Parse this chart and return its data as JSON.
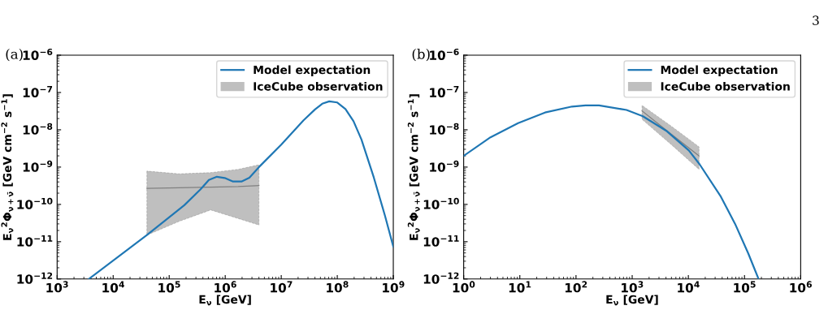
{
  "chart_data": [
    {
      "type": "line",
      "title": "(a)",
      "xlabel": "E$_{ν}$ [GeV]",
      "ylabel": "E$_{ν}$$^{2}$Φ$_{ν+ν̄}$ [GeV cm$^{−2}$ s$^{−1}$]",
      "log": "xy",
      "legend": "top right",
      "grid": false,
      "xlim": [
        1000,
        1000000000
      ],
      "ylim": [
        1e-12,
        1e-06
      ],
      "xticks": [
        {
          "value": 1000,
          "label": "10$^{3}$"
        },
        {
          "value": 10000,
          "label": "10$^{4}$"
        },
        {
          "value": 100000,
          "label": "10$^{5}$"
        },
        {
          "value": 1000000,
          "label": "10$^{6}$"
        },
        {
          "value": 10000000,
          "label": "10$^{7}$"
        },
        {
          "value": 100000000,
          "label": "10$^{8}$"
        },
        {
          "value": 1000000000,
          "label": "10$^{9}$"
        }
      ],
      "yticks": [
        {
          "value": 1e-12,
          "label": "10$^{−12}$"
        },
        {
          "value": 1e-11,
          "label": "10$^{−11}$"
        },
        {
          "value": 1e-10,
          "label": "10$^{−10}$"
        },
        {
          "value": 1e-09,
          "label": "10$^{−9}$"
        },
        {
          "value": 1e-08,
          "label": "10$^{−8}$"
        },
        {
          "value": 1e-07,
          "label": "10$^{−7}$"
        },
        {
          "value": 1e-06,
          "label": "10$^{−6}$"
        }
      ],
      "series": [
        {
          "name": "Model expectation",
          "color": "#1f77b4",
          "x": [
            3670,
            40000,
            186000,
            360000,
            510000,
            710000,
            980000,
            1380000,
            1950000,
            2700000,
            4000000,
            10000000,
            25000000,
            40000000,
            54000000,
            72000000,
            100000000,
            140000000,
            195000000,
            270000000,
            450000000,
            710000000,
            1000000000
          ],
          "values": [
            1e-12,
            1.5e-11,
            9.5e-11,
            2.5e-10,
            4.5e-10,
            5.5e-10,
            5.1e-10,
            4.1e-10,
            4.1e-10,
            5.2e-10,
            1e-09,
            4e-09,
            1.8e-08,
            3.5e-08,
            5e-08,
            5.8e-08,
            5.4e-08,
            3.6e-08,
            1.7e-08,
            5.5e-09,
            5.2e-10,
            5e-11,
            7.4e-12
          ]
        },
        {
          "name": "IceCube observation",
          "color": "#808080",
          "x": [
            40000,
            150000,
            550000,
            1700000,
            4000000
          ],
          "values": [
            2.7e-10,
            2.8e-10,
            2.9e-10,
            3e-10,
            3.2e-10
          ],
          "lower": [
            1.5e-11,
            3.5e-11,
            7.1e-11,
            4.2e-11,
            2.8e-11
          ],
          "upper": [
            7.8e-10,
            6.6e-10,
            7.1e-10,
            8.7e-10,
            1.15e-09
          ]
        }
      ]
    },
    {
      "type": "line",
      "title": "(b)",
      "xlabel": "E$_{ν}$ [GeV]",
      "ylabel": "E$_{ν}$$^{2}$Φ$_{ν+ν̄}$ [GeV cm$^{−2}$ s$^{−1}$]",
      "log": "xy",
      "legend": "top right",
      "grid": false,
      "xlim": [
        1,
        1000000
      ],
      "ylim": [
        1e-12,
        1e-06
      ],
      "xticks": [
        {
          "value": 1,
          "label": "10$^{0}$"
        },
        {
          "value": 10,
          "label": "10$^{1}$"
        },
        {
          "value": 100,
          "label": "10$^{2}$"
        },
        {
          "value": 1000,
          "label": "10$^{3}$"
        },
        {
          "value": 10000,
          "label": "10$^{4}$"
        },
        {
          "value": 100000,
          "label": "10$^{5}$"
        },
        {
          "value": 1000000,
          "label": "10$^{6}$"
        }
      ],
      "yticks": [
        {
          "value": 1e-12,
          "label": "10$^{−12}$"
        },
        {
          "value": 1e-11,
          "label": "10$^{−11}$"
        },
        {
          "value": 1e-10,
          "label": "10$^{−10}$"
        },
        {
          "value": 1e-09,
          "label": "10$^{−9}$"
        },
        {
          "value": 1e-08,
          "label": "10$^{−8}$"
        },
        {
          "value": 1e-07,
          "label": "10$^{−7}$"
        },
        {
          "value": 1e-06,
          "label": "10$^{−6}$"
        }
      ],
      "annotations": [
        "3"
      ],
      "series": [
        {
          "name": "Model expectation",
          "color": "#1f77b4",
          "x": [
            1,
            3.0,
            9.3,
            28,
            85,
            148,
            257,
            794,
            1550,
            4170,
            10200,
            15800,
            38000,
            68000,
            117000,
            178000
          ],
          "values": [
            2e-09,
            6.3e-09,
            1.5e-08,
            2.9e-08,
            4.2e-08,
            4.5e-08,
            4.5e-08,
            3.4e-08,
            2.3e-08,
            9.1e-09,
            2.8e-09,
            1.2e-09,
            1.6e-10,
            3e-11,
            4.8e-12,
            1e-12
          ]
        },
        {
          "name": "IceCube observation",
          "color": "#808080",
          "x": [
            1500,
            4800,
            15500
          ],
          "values": [
            3.2e-08,
            8e-09,
            2e-09
          ],
          "lower": [
            1.9e-08,
            4.2e-09,
            8.7e-10
          ],
          "upper": [
            4.5e-08,
            1.3e-08,
            3.5e-09
          ]
        }
      ]
    }
  ]
}
